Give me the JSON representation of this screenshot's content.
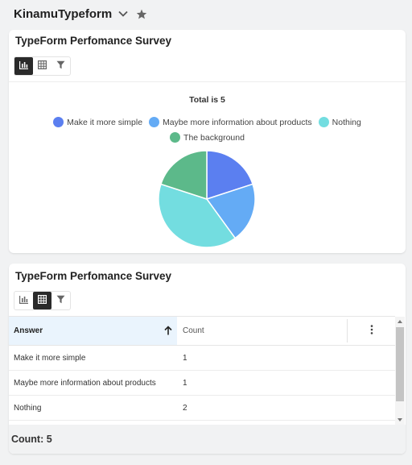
{
  "app": {
    "title": "KinamuTypeform"
  },
  "colors": {
    "series": [
      "#5b7ff0",
      "#64abf5",
      "#73dde0",
      "#5cb98a"
    ],
    "active_toggle": "#2a2a2a",
    "header_highlight": "#eaf4fd"
  },
  "chart_card": {
    "title": "TypeForm Perfomance Survey",
    "view_toggle": {
      "selected": "chart",
      "icons": [
        "bar-chart-icon",
        "table-icon",
        "filter-icon"
      ]
    }
  },
  "table_card": {
    "title": "TypeForm Perfomance Survey",
    "view_toggle": {
      "selected": "table",
      "icons": [
        "bar-chart-icon",
        "table-icon",
        "filter-icon"
      ]
    },
    "columns": {
      "answer": "Answer",
      "count": "Count"
    },
    "rows": [
      {
        "answer": "Make it more simple",
        "count": "1"
      },
      {
        "answer": "Maybe more information about products",
        "count": "1"
      },
      {
        "answer": "Nothing",
        "count": "2"
      }
    ],
    "footer": "Count: 5"
  },
  "chart_data": {
    "type": "pie",
    "title": "Total is 5",
    "categories": [
      "Make it more simple",
      "Maybe more information about products",
      "Nothing",
      "The background"
    ],
    "values": [
      1,
      1,
      2,
      1
    ],
    "colors": [
      "#5b7ff0",
      "#64abf5",
      "#73dde0",
      "#5cb98a"
    ],
    "legend": "top"
  }
}
